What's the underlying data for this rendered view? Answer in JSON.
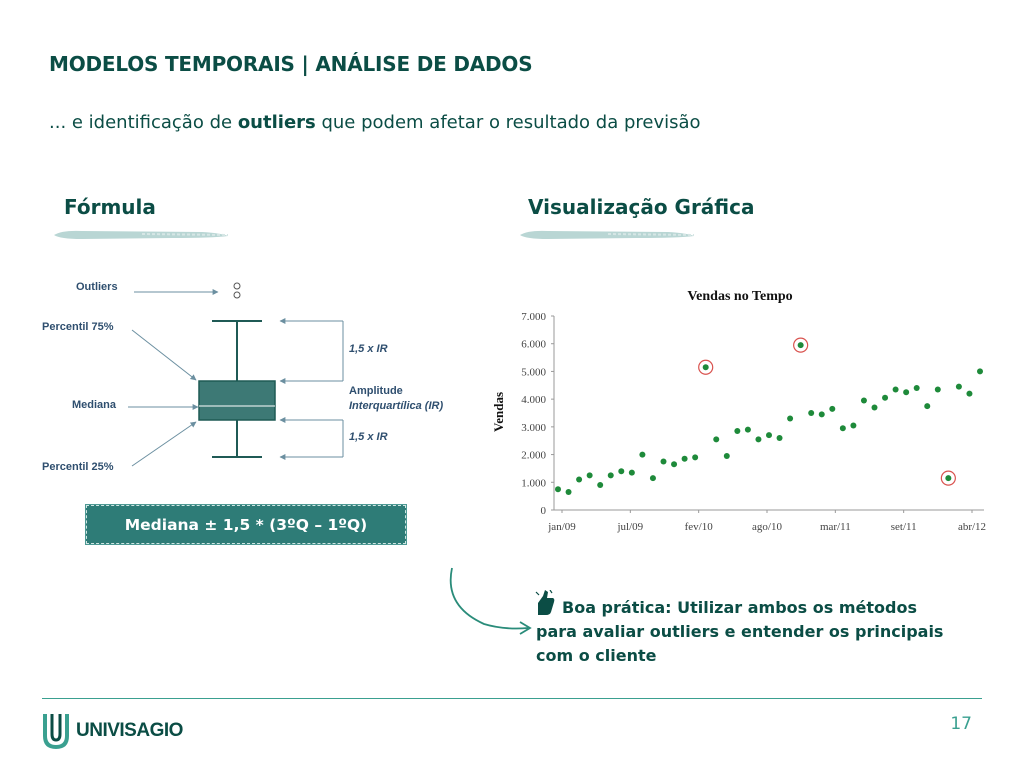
{
  "slide": {
    "title": "MODELOS TEMPORAIS | ANÁLISE DE DADOS",
    "subtitle_pre": "... e identificação de ",
    "subtitle_bold": "outliers",
    "subtitle_post": " que podem afetar o resultado da previsão",
    "page_number": "17"
  },
  "left_section": {
    "heading": "Fórmula",
    "boxplot_labels": {
      "outliers": "Outliers",
      "p75": "Percentil 75%",
      "mediana": "Mediana",
      "p25": "Percentil 25%",
      "ir_top": "1,5 x IR",
      "amplitude_1": "Amplitude",
      "amplitude_2": "Interquartílica (IR)",
      "ir_bottom": "1,5 x IR"
    },
    "formula": "Mediana ± 1,5 * (3ºQ – 1ºQ)"
  },
  "right_section": {
    "heading": "Visualização Gráfica",
    "tip": "Boa prática: Utilizar ambos os métodos para avaliar outliers e entender os principais com o cliente",
    "tip_icon": "thumbs-up-icon"
  },
  "logo": {
    "text": "UNIVISAGIO"
  },
  "colors": {
    "primary": "#0b4d45",
    "accent": "#3aa090",
    "box": "#2e7c77",
    "point": "#1e8a3a",
    "outlier_ring": "#d9534f"
  },
  "chart_data": {
    "type": "scatter",
    "title": "Vendas no Tempo",
    "xlabel": "",
    "ylabel": "Vendas",
    "x_tick_labels": [
      "jan/09",
      "jul/09",
      "fev/10",
      "ago/10",
      "mar/11",
      "set/11",
      "abr/12"
    ],
    "y_tick_labels": [
      "0",
      "1.000",
      "2.000",
      "3.000",
      "4.000",
      "5.000",
      "6.000",
      "7.000"
    ],
    "ylim": [
      0,
      7000
    ],
    "x_unit": "month index from jan/09",
    "points": [
      {
        "x": 0,
        "y": 750
      },
      {
        "x": 1,
        "y": 650
      },
      {
        "x": 2,
        "y": 1100
      },
      {
        "x": 3,
        "y": 1250
      },
      {
        "x": 4,
        "y": 900
      },
      {
        "x": 5,
        "y": 1250
      },
      {
        "x": 6,
        "y": 1400
      },
      {
        "x": 7,
        "y": 1350
      },
      {
        "x": 8,
        "y": 2000
      },
      {
        "x": 9,
        "y": 1150
      },
      {
        "x": 10,
        "y": 1750
      },
      {
        "x": 11,
        "y": 1650
      },
      {
        "x": 12,
        "y": 1850
      },
      {
        "x": 13,
        "y": 1900
      },
      {
        "x": 14,
        "y": 5150
      },
      {
        "x": 15,
        "y": 2550
      },
      {
        "x": 16,
        "y": 1950
      },
      {
        "x": 17,
        "y": 2850
      },
      {
        "x": 18,
        "y": 2900
      },
      {
        "x": 19,
        "y": 2550
      },
      {
        "x": 20,
        "y": 2700
      },
      {
        "x": 21,
        "y": 2600
      },
      {
        "x": 22,
        "y": 3300
      },
      {
        "x": 23,
        "y": 5950
      },
      {
        "x": 24,
        "y": 3500
      },
      {
        "x": 25,
        "y": 3450
      },
      {
        "x": 26,
        "y": 3650
      },
      {
        "x": 27,
        "y": 2950
      },
      {
        "x": 28,
        "y": 3050
      },
      {
        "x": 29,
        "y": 3950
      },
      {
        "x": 30,
        "y": 3700
      },
      {
        "x": 31,
        "y": 4050
      },
      {
        "x": 32,
        "y": 4350
      },
      {
        "x": 33,
        "y": 4250
      },
      {
        "x": 34,
        "y": 4400
      },
      {
        "x": 35,
        "y": 3750
      },
      {
        "x": 36,
        "y": 4350
      },
      {
        "x": 37,
        "y": 1150
      },
      {
        "x": 38,
        "y": 4450
      },
      {
        "x": 39,
        "y": 4200
      },
      {
        "x": 40,
        "y": 5000
      }
    ],
    "outliers": [
      14,
      23,
      37
    ],
    "grid": false,
    "legend": "none"
  }
}
